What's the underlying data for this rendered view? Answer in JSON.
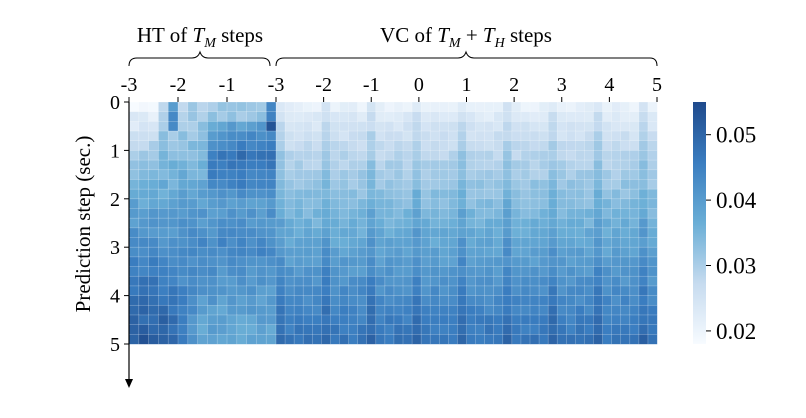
{
  "chart_data": {
    "type": "heatmap",
    "ylabel": "Prediction step (sec.)",
    "groups": [
      {
        "label_pre": "HT of ",
        "label_math": "T",
        "label_sub": "M",
        "label_post": " steps",
        "x_ticks": [
          "-3",
          "-2",
          "-1"
        ]
      },
      {
        "label_pre": "VC of ",
        "label_math": "T",
        "label_sub": "M",
        "label_mid": " + ",
        "label_math2": "T",
        "label_sub2": "H",
        "label_post": " steps",
        "x_ticks": [
          "-3",
          "-2",
          "-1",
          "0",
          "1",
          "2",
          "3",
          "4",
          "5"
        ]
      }
    ],
    "y_ticks": [
      "0",
      "1",
      "2",
      "3",
      "4",
      "5"
    ],
    "colorbar": {
      "ticks": [
        "0.02",
        "0.03",
        "0.04",
        "0.05"
      ],
      "min": 0.018,
      "max": 0.055
    },
    "grid": true,
    "cells_per_second": 5,
    "summary": {
      "HT_top": 0.03,
      "HT_bottom": 0.052,
      "VC_top": 0.021,
      "VC_bottom": 0.047
    },
    "colors": {
      "low": "#f7fbff",
      "mid": "#6aaed6",
      "high": "#1f4a8c"
    }
  }
}
